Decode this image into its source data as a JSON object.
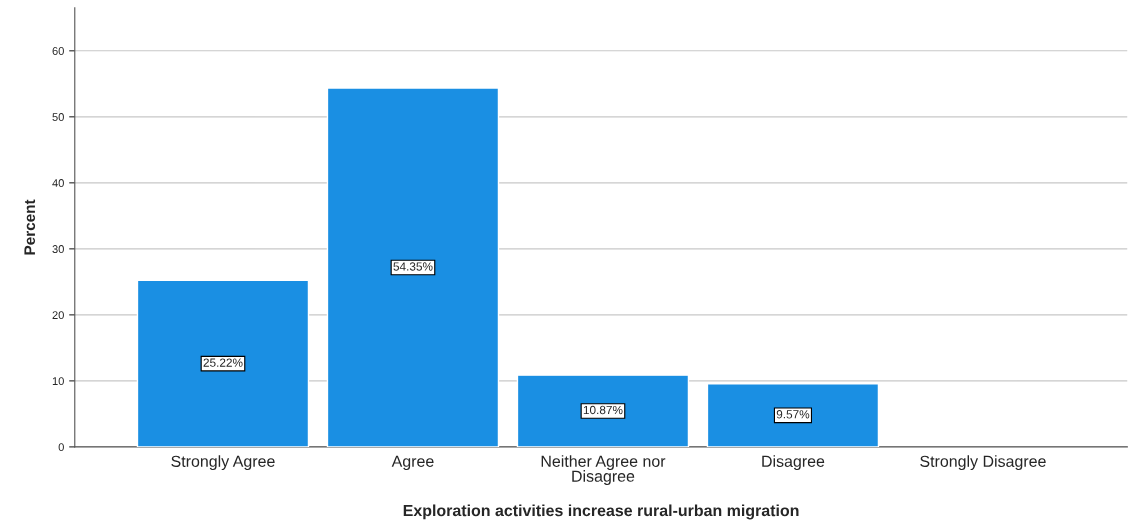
{
  "chart_data": {
    "type": "bar",
    "categories": [
      "Strongly Agree",
      "Agree",
      "Neither Agree nor\nDisagree",
      "Disagree",
      "Strongly Disagree"
    ],
    "values": [
      25.22,
      54.35,
      10.87,
      9.57,
      null
    ],
    "value_labels": [
      "25.22%",
      "54.35%",
      "10.87%",
      "9.57%",
      null
    ],
    "color": "#1a8fe3",
    "xlabel": "Exploration activities increase rural-urban migration",
    "ylabel": "Percent",
    "ylim": [
      0,
      66.5
    ],
    "yticks": [
      0,
      10,
      20,
      30,
      40,
      50,
      60
    ],
    "grid": "y",
    "legend": false
  }
}
